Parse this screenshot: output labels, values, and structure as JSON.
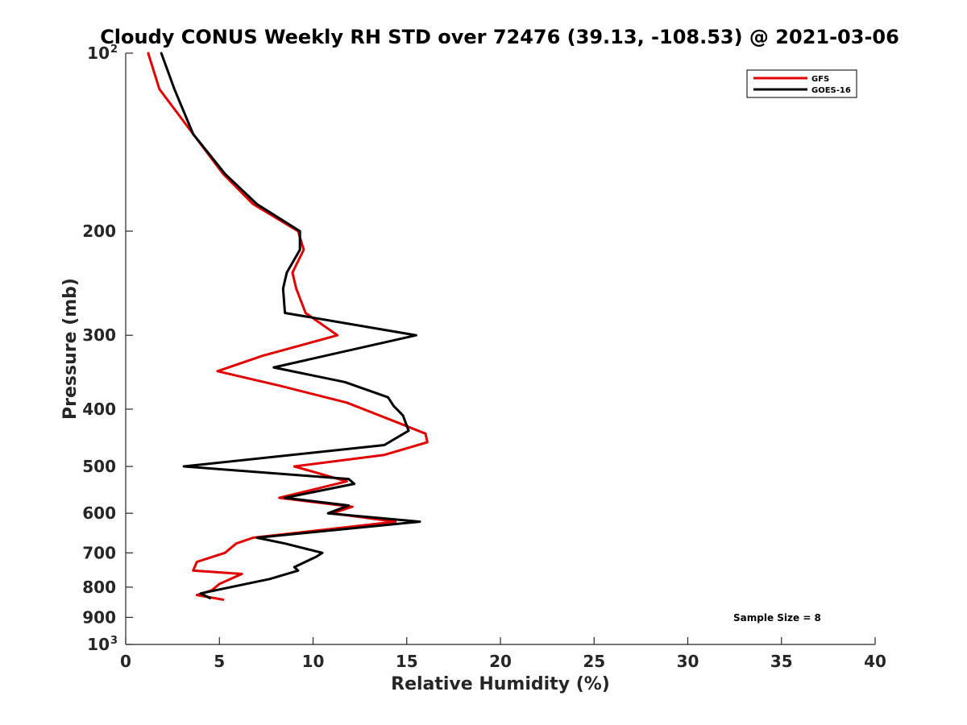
{
  "chart_data": {
    "type": "line",
    "title": "Cloudy CONUS Weekly RH STD over 72476 (39.13, -108.53) @ 2021-03-06",
    "xlabel": "Relative Humidity (%)",
    "ylabel": "Pressure (mb)",
    "xlim": [
      0,
      40
    ],
    "ylim": [
      100,
      1000
    ],
    "yscale": "log",
    "y_reversed": true,
    "grid": false,
    "legend_position": "top-right",
    "x_ticks": [
      "0",
      "5",
      "10",
      "15",
      "20",
      "25",
      "30",
      "35",
      "40"
    ],
    "y_ticks": [
      {
        "base": "10",
        "exp": "2"
      },
      {
        "base": "200",
        "exp": ""
      },
      {
        "base": "300",
        "exp": ""
      },
      {
        "base": "400",
        "exp": ""
      },
      {
        "base": "500",
        "exp": ""
      },
      {
        "base": "600",
        "exp": ""
      },
      {
        "base": "700",
        "exp": ""
      },
      {
        "base": "800",
        "exp": ""
      },
      {
        "base": "900",
        "exp": ""
      },
      {
        "base": "10",
        "exp": "3"
      }
    ],
    "annotation": "Sample Size = 8",
    "series": [
      {
        "name": "GFS",
        "color": "#e00000",
        "points": [
          [
            1.2,
            100
          ],
          [
            1.8,
            115
          ],
          [
            3.6,
            137
          ],
          [
            5.2,
            160
          ],
          [
            6.8,
            180
          ],
          [
            9.2,
            200
          ],
          [
            9.5,
            215
          ],
          [
            8.9,
            235
          ],
          [
            9.1,
            250
          ],
          [
            9.6,
            275
          ],
          [
            11.3,
            300
          ],
          [
            7.3,
            325
          ],
          [
            4.9,
            345
          ],
          [
            8.2,
            365
          ],
          [
            11.8,
            390
          ],
          [
            14.8,
            425
          ],
          [
            16.0,
            440
          ],
          [
            16.1,
            455
          ],
          [
            13.8,
            478
          ],
          [
            9.0,
            500
          ],
          [
            11.8,
            530
          ],
          [
            8.2,
            565
          ],
          [
            12.1,
            585
          ],
          [
            11.0,
            600
          ],
          [
            14.4,
            620
          ],
          [
            6.8,
            660
          ],
          [
            5.9,
            675
          ],
          [
            5.3,
            700
          ],
          [
            3.8,
            725
          ],
          [
            3.6,
            750
          ],
          [
            6.2,
            760
          ],
          [
            5.0,
            790
          ],
          [
            4.6,
            810
          ],
          [
            3.8,
            825
          ],
          [
            5.2,
            840
          ]
        ]
      },
      {
        "name": "GOES-16",
        "color": "#000000",
        "points": [
          [
            1.9,
            100
          ],
          [
            2.6,
            115
          ],
          [
            3.6,
            137
          ],
          [
            5.3,
            160
          ],
          [
            7.0,
            180
          ],
          [
            9.3,
            200
          ],
          [
            9.3,
            215
          ],
          [
            8.6,
            235
          ],
          [
            8.4,
            250
          ],
          [
            8.5,
            275
          ],
          [
            15.5,
            300
          ],
          [
            7.9,
            340
          ],
          [
            11.7,
            360
          ],
          [
            14.0,
            382
          ],
          [
            14.3,
            395
          ],
          [
            14.8,
            410
          ],
          [
            15.1,
            435
          ],
          [
            13.8,
            460
          ],
          [
            3.1,
            500
          ],
          [
            11.9,
            525
          ],
          [
            12.2,
            535
          ],
          [
            8.5,
            565
          ],
          [
            11.9,
            582
          ],
          [
            10.8,
            600
          ],
          [
            15.7,
            620
          ],
          [
            7.0,
            660
          ],
          [
            8.5,
            675
          ],
          [
            10.5,
            700
          ],
          [
            10.2,
            710
          ],
          [
            9.0,
            740
          ],
          [
            9.2,
            750
          ],
          [
            7.7,
            775
          ],
          [
            4.0,
            820
          ],
          [
            4.5,
            835
          ]
        ]
      }
    ]
  }
}
